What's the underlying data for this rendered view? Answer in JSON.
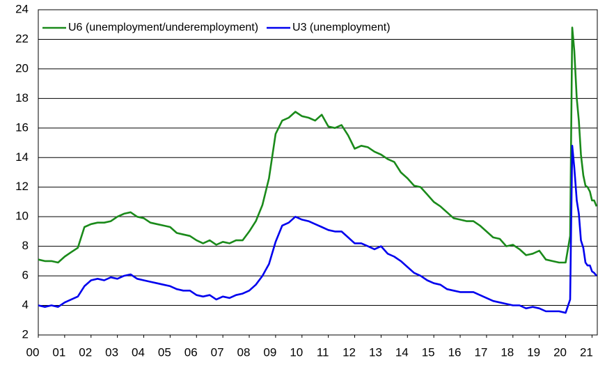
{
  "chart_data": {
    "type": "line",
    "x": [
      2000,
      2000.25,
      2000.5,
      2000.75,
      2001,
      2001.25,
      2001.5,
      2001.75,
      2002,
      2002.25,
      2002.5,
      2002.75,
      2003,
      2003.25,
      2003.5,
      2003.75,
      2004,
      2004.25,
      2004.5,
      2004.75,
      2005,
      2005.25,
      2005.5,
      2005.75,
      2006,
      2006.25,
      2006.5,
      2006.75,
      2007,
      2007.25,
      2007.5,
      2007.75,
      2008,
      2008.25,
      2008.5,
      2008.75,
      2009,
      2009.25,
      2009.5,
      2009.75,
      2010,
      2010.25,
      2010.5,
      2010.75,
      2011,
      2011.25,
      2011.5,
      2011.75,
      2012,
      2012.25,
      2012.5,
      2012.75,
      2013,
      2013.25,
      2013.5,
      2013.75,
      2014,
      2014.25,
      2014.5,
      2014.75,
      2015,
      2015.25,
      2015.5,
      2015.75,
      2016,
      2016.25,
      2016.5,
      2016.75,
      2017,
      2017.25,
      2017.5,
      2017.75,
      2018,
      2018.25,
      2018.5,
      2018.75,
      2019,
      2019.25,
      2019.5,
      2019.75,
      2020,
      2020.17,
      2020.25,
      2020.33,
      2020.42,
      2020.5,
      2020.58,
      2020.67,
      2020.75,
      2020.83,
      2020.92,
      2021,
      2021.08,
      2021.17
    ],
    "series": [
      {
        "name": "U6 (unemployment/underemployment)",
        "color": "#1a8a1a",
        "values": [
          7.1,
          7.0,
          7.0,
          6.9,
          7.3,
          7.6,
          7.9,
          9.3,
          9.5,
          9.6,
          9.6,
          9.7,
          10.0,
          10.2,
          10.3,
          10.0,
          9.9,
          9.6,
          9.5,
          9.4,
          9.3,
          8.9,
          8.8,
          8.7,
          8.4,
          8.2,
          8.4,
          8.1,
          8.3,
          8.2,
          8.4,
          8.4,
          9.0,
          9.7,
          10.8,
          12.6,
          15.6,
          16.5,
          16.7,
          17.1,
          16.8,
          16.7,
          16.5,
          16.9,
          16.1,
          16.0,
          16.2,
          15.5,
          14.6,
          14.8,
          14.7,
          14.4,
          14.2,
          13.9,
          13.7,
          13.0,
          12.6,
          12.1,
          12.0,
          11.5,
          11.0,
          10.7,
          10.3,
          9.9,
          9.8,
          9.7,
          9.7,
          9.4,
          9.0,
          8.6,
          8.5,
          8.0,
          8.1,
          7.8,
          7.4,
          7.5,
          7.7,
          7.1,
          7.0,
          6.9,
          6.9,
          8.7,
          22.8,
          21.2,
          18.0,
          16.5,
          14.2,
          12.8,
          12.1,
          12.0,
          11.7,
          11.1,
          11.1,
          10.7
        ]
      },
      {
        "name": "U3 (unemployment)",
        "color": "#0000ee",
        "values": [
          4.0,
          3.9,
          4.0,
          3.9,
          4.2,
          4.4,
          4.6,
          5.3,
          5.7,
          5.8,
          5.7,
          5.9,
          5.8,
          6.0,
          6.1,
          5.8,
          5.7,
          5.6,
          5.5,
          5.4,
          5.3,
          5.1,
          5.0,
          5.0,
          4.7,
          4.6,
          4.7,
          4.4,
          4.6,
          4.5,
          4.7,
          4.8,
          5.0,
          5.4,
          6.0,
          6.8,
          8.3,
          9.4,
          9.6,
          10.0,
          9.8,
          9.7,
          9.5,
          9.3,
          9.1,
          9.0,
          9.0,
          8.6,
          8.2,
          8.2,
          8.0,
          7.8,
          8.0,
          7.5,
          7.3,
          7.0,
          6.6,
          6.2,
          6.0,
          5.7,
          5.5,
          5.4,
          5.1,
          5.0,
          4.9,
          4.9,
          4.9,
          4.7,
          4.5,
          4.3,
          4.2,
          4.1,
          4.0,
          4.0,
          3.8,
          3.9,
          3.8,
          3.6,
          3.6,
          3.6,
          3.5,
          4.4,
          14.8,
          13.3,
          11.1,
          10.2,
          8.4,
          7.9,
          6.9,
          6.7,
          6.7,
          6.3,
          6.2,
          6.0
        ]
      }
    ],
    "xlim": [
      2000,
      2021.2
    ],
    "xticks": [
      {
        "value": 2000,
        "label": "00"
      },
      {
        "value": 2001,
        "label": "01"
      },
      {
        "value": 2002,
        "label": "02"
      },
      {
        "value": 2003,
        "label": "03"
      },
      {
        "value": 2004,
        "label": "04"
      },
      {
        "value": 2005,
        "label": "05"
      },
      {
        "value": 2006,
        "label": "06"
      },
      {
        "value": 2007,
        "label": "07"
      },
      {
        "value": 2008,
        "label": "08"
      },
      {
        "value": 2009,
        "label": "09"
      },
      {
        "value": 2010,
        "label": "10"
      },
      {
        "value": 2011,
        "label": "11"
      },
      {
        "value": 2012,
        "label": "12"
      },
      {
        "value": 2013,
        "label": "13"
      },
      {
        "value": 2014,
        "label": "14"
      },
      {
        "value": 2015,
        "label": "15"
      },
      {
        "value": 2016,
        "label": "16"
      },
      {
        "value": 2017,
        "label": "17"
      },
      {
        "value": 2018,
        "label": "18"
      },
      {
        "value": 2019,
        "label": "19"
      },
      {
        "value": 2020,
        "label": "20"
      },
      {
        "value": 2021,
        "label": "21"
      }
    ],
    "ylim": [
      2,
      24
    ],
    "yticks": [
      2,
      4,
      6,
      8,
      10,
      12,
      14,
      16,
      18,
      20,
      22,
      24
    ],
    "grid": true,
    "legend": "upper left"
  }
}
